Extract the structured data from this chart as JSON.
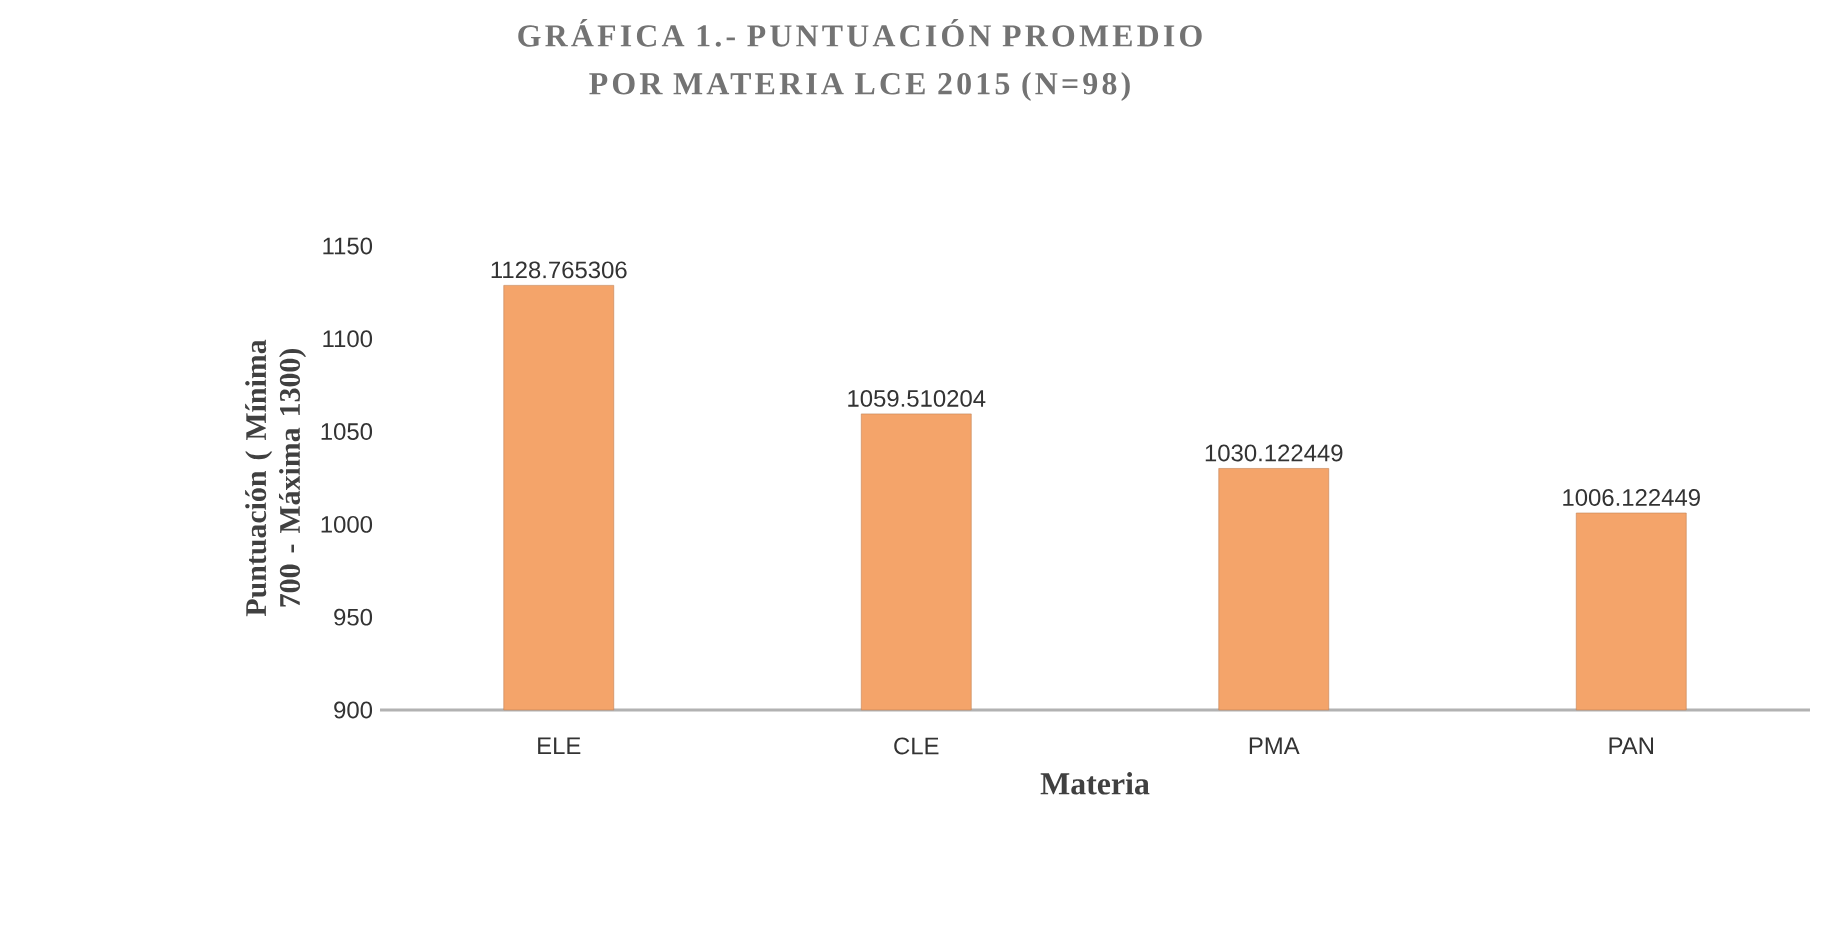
{
  "chart_data": {
    "type": "bar",
    "title": "GRÁFICA 1.- PUNTUACIÓN PROMEDIO POR MATERIA LCE 2015 (N=98)",
    "xlabel": "Materia",
    "ylabel": "Puntuación ( Mínima 700 - Máxima 1300)",
    "categories": [
      "ELE",
      "CLE",
      "PMA",
      "PAN"
    ],
    "values": [
      1128.765306,
      1059.510204,
      1030.122449,
      1006.122449
    ],
    "color": "#f4a46a",
    "ylim": [
      900,
      1150
    ],
    "yticks": [
      900,
      950,
      1000,
      1050,
      1100,
      1150
    ],
    "data_labels": true
  }
}
